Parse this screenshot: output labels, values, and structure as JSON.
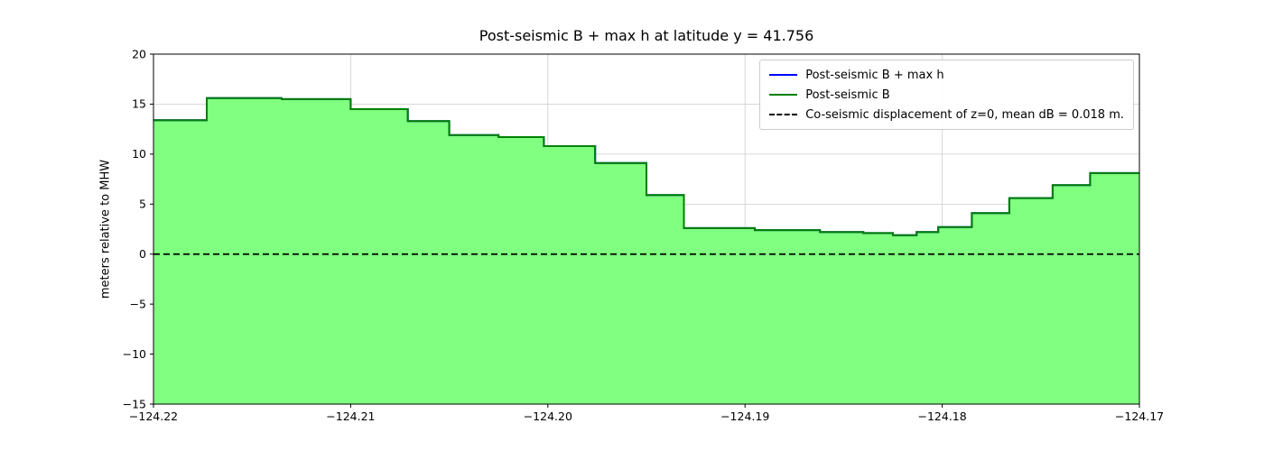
{
  "title": "Post-seismic B + max h at latitude y = 41.756",
  "ylabel": "meters relative to MHW",
  "legend": {
    "entries": [
      {
        "label": "Post-seismic B + max h",
        "color": "#0000ff",
        "dash": false
      },
      {
        "label": "Post-seismic B",
        "color": "#008000",
        "dash": false
      },
      {
        "label": "Co-seismic displacement of z=0, mean dB = 0.018 m.",
        "color": "#000000",
        "dash": true
      }
    ]
  },
  "chart_data": {
    "type": "area",
    "title": "Post-seismic B + max h at latitude y = 41.756",
    "xlabel": "",
    "ylabel": "meters relative to MHW",
    "xlim": [
      -124.22,
      -124.17
    ],
    "ylim": [
      -15,
      20
    ],
    "grid": true,
    "legend_position": "upper right",
    "xticks": [
      {
        "value": -124.22,
        "label": "−124.22"
      },
      {
        "value": -124.21,
        "label": "−124.21"
      },
      {
        "value": -124.2,
        "label": "−124.20"
      },
      {
        "value": -124.19,
        "label": "−124.19"
      },
      {
        "value": -124.18,
        "label": "−124.18"
      },
      {
        "value": -124.17,
        "label": "−124.17"
      }
    ],
    "yticks": [
      {
        "value": -15,
        "label": "−15"
      },
      {
        "value": -10,
        "label": "−10"
      },
      {
        "value": -5,
        "label": "−5"
      },
      {
        "value": 0,
        "label": "0"
      },
      {
        "value": 5,
        "label": "5"
      },
      {
        "value": 10,
        "label": "10"
      },
      {
        "value": 15,
        "label": "15"
      },
      {
        "value": 20,
        "label": "20"
      }
    ],
    "fill_color": "#80ff80",
    "series": [
      {
        "name": "Post-seismic B + max h",
        "color": "#0000ff"
      },
      {
        "name": "Post-seismic B",
        "color": "#008000"
      }
    ],
    "zero_line": {
      "y": 0,
      "label": "Co-seismic displacement of z=0, mean dB = 0.018 m.",
      "color": "#000000"
    },
    "steps": [
      [
        -124.22,
        13.4
      ],
      [
        -124.2173,
        15.6
      ],
      [
        -124.2135,
        15.5
      ],
      [
        -124.21,
        14.5
      ],
      [
        -124.2071,
        13.3
      ],
      [
        -124.205,
        11.9
      ],
      [
        -124.2025,
        11.7
      ],
      [
        -124.2002,
        10.8
      ],
      [
        -124.1976,
        9.1
      ],
      [
        -124.195,
        5.9
      ],
      [
        -124.1931,
        2.6
      ],
      [
        -124.1895,
        2.4
      ],
      [
        -124.1862,
        2.2
      ],
      [
        -124.184,
        2.1
      ],
      [
        -124.1825,
        1.9
      ],
      [
        -124.1813,
        2.2
      ],
      [
        -124.1802,
        2.7
      ],
      [
        -124.1785,
        4.1
      ],
      [
        -124.1766,
        5.6
      ],
      [
        -124.1744,
        6.9
      ],
      [
        -124.1725,
        8.1
      ]
    ],
    "x_end": -124.17
  }
}
